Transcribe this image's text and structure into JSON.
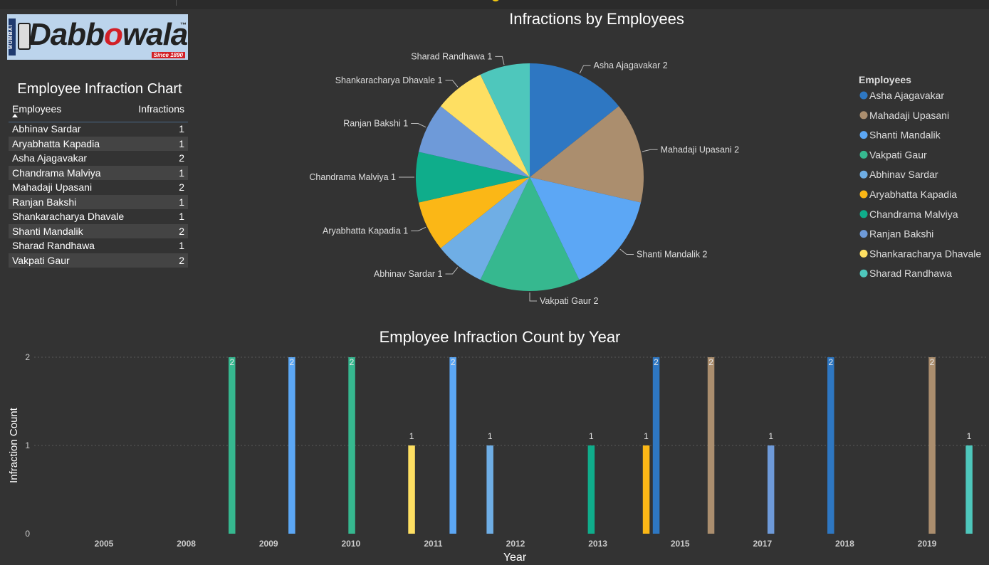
{
  "logo": {
    "side_text": "MUMBAI",
    "word_a": "Dabb",
    "word_b": "o",
    "word_c": "wala",
    "tm": "™",
    "since": "Since 1890"
  },
  "table": {
    "title": "Employee Infraction Chart",
    "headers": [
      "Employees",
      "Infractions"
    ],
    "rows": [
      {
        "name": "Abhinav Sardar",
        "value": "1"
      },
      {
        "name": "Aryabhatta Kapadia",
        "value": "1"
      },
      {
        "name": "Asha Ajagavakar",
        "value": "2"
      },
      {
        "name": "Chandrama Malviya",
        "value": "1"
      },
      {
        "name": "Mahadaji Upasani",
        "value": "2"
      },
      {
        "name": "Ranjan Bakshi",
        "value": "1"
      },
      {
        "name": "Shankaracharya Dhavale",
        "value": "1"
      },
      {
        "name": "Shanti Mandalik",
        "value": "2"
      },
      {
        "name": "Sharad Randhawa",
        "value": "1"
      },
      {
        "name": "Vakpati Gaur",
        "value": "2"
      }
    ]
  },
  "chart_data": [
    {
      "type": "pie",
      "title": "Infractions by Employees",
      "legend_title": "Employees",
      "legend_position": "right",
      "slices": [
        {
          "label": "Asha Ajagavakar",
          "value": 2,
          "color": "#2e77c2"
        },
        {
          "label": "Mahadaji Upasani",
          "value": 2,
          "color": "#ab8e6e"
        },
        {
          "label": "Shanti Mandalik",
          "value": 2,
          "color": "#5ca7f5"
        },
        {
          "label": "Vakpati Gaur",
          "value": 2,
          "color": "#36b88f"
        },
        {
          "label": "Abhinav Sardar",
          "value": 1,
          "color": "#6faee5"
        },
        {
          "label": "Aryabhatta Kapadia",
          "value": 1,
          "color": "#fbb716"
        },
        {
          "label": "Chandrama Malviya",
          "value": 1,
          "color": "#0fad8b"
        },
        {
          "label": "Ranjan Bakshi",
          "value": 1,
          "color": "#6e9ad9"
        },
        {
          "label": "Shankaracharya Dhavale",
          "value": 1,
          "color": "#fedf62"
        },
        {
          "label": "Sharad Randhawa",
          "value": 1,
          "color": "#4ec7bc"
        }
      ]
    },
    {
      "type": "bar",
      "title": "Employee Infraction Count by Year",
      "xlabel": "Year",
      "ylabel": "Infraction Count",
      "ylim": [
        0,
        2
      ],
      "yticks": [
        "0",
        "1",
        "2"
      ],
      "xticks": [
        "2005",
        "2008",
        "2009",
        "2010",
        "2011",
        "2012",
        "2013",
        "2015",
        "2017",
        "2018",
        "2019"
      ],
      "grid": true,
      "bars": [
        {
          "year": 2007,
          "employee": "Vakpati Gaur",
          "value": 2,
          "color": "#36b88f"
        },
        {
          "year": 2008,
          "employee": "Shanti Mandalik",
          "value": 2,
          "color": "#5ca7f5"
        },
        {
          "year": 2009,
          "employee": "Vakpati Gaur",
          "value": 2,
          "color": "#36b88f"
        },
        {
          "year": 2010,
          "employee": "Shankaracharya Dhavale",
          "value": 1,
          "color": "#fedf62"
        },
        {
          "year": 2011,
          "employee": "Shanti Mandalik",
          "value": 2,
          "color": "#5ca7f5"
        },
        {
          "year": 2011,
          "employee": "Abhinav Sardar",
          "value": 1,
          "color": "#6faee5"
        },
        {
          "year": 2013,
          "employee": "Chandrama Malviya",
          "value": 1,
          "color": "#0fad8b"
        },
        {
          "year": 2014,
          "employee": "Aryabhatta Kapadia",
          "value": 1,
          "color": "#fbb716"
        },
        {
          "year": 2014,
          "employee": "Asha Ajagavakar",
          "value": 2,
          "color": "#2e77c2"
        },
        {
          "year": 2015,
          "employee": "Mahadaji Upasani",
          "value": 2,
          "color": "#ab8e6e"
        },
        {
          "year": 2016,
          "employee": "Ranjan Bakshi",
          "value": 1,
          "color": "#6e9ad9"
        },
        {
          "year": 2017,
          "employee": "Asha Ajagavakar",
          "value": 2,
          "color": "#2e77c2"
        },
        {
          "year": 2019,
          "employee": "Mahadaji Upasani",
          "value": 2,
          "color": "#ab8e6e"
        },
        {
          "year": 2019,
          "employee": "Sharad Randhawa",
          "value": 1,
          "color": "#4ec7bc"
        }
      ]
    }
  ]
}
